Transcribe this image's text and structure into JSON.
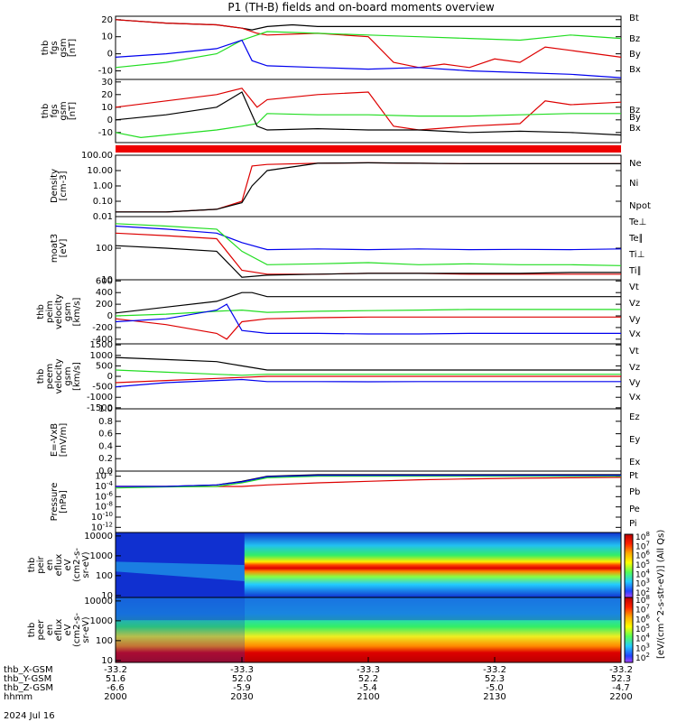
{
  "title": "P1 (TH-B) fields and on-board moments overview",
  "date_label": "2024 Jul 16",
  "colors": {
    "black": "#000000",
    "red": "#dd0000",
    "green": "#22dd22",
    "blue": "#0000ee"
  },
  "colorbar_label": "[eV/(cm^2-s-str-eV)] (All Qs)",
  "colorbar_ticks": [
    "10^8",
    "10^7",
    "10^6",
    "10^5",
    "10^4",
    "10^3",
    "10^2"
  ],
  "chart_data": [
    {
      "type": "line",
      "ylabel": [
        "thb",
        "fgs",
        "gsm",
        "[nT]"
      ],
      "ylim": [
        -15,
        22
      ],
      "yticks": [
        "20",
        "10",
        "0",
        "-10"
      ],
      "ytick_values": [
        20,
        10,
        0,
        -10
      ],
      "legend": [
        "Bt",
        "Bz",
        "By",
        "Bx"
      ],
      "series": [
        {
          "name": "Bt",
          "color": "black",
          "x": [
            0,
            0.1,
            0.2,
            0.25,
            0.27,
            0.3,
            0.35,
            0.4,
            0.5,
            0.6,
            0.7,
            0.8,
            0.9,
            1.0
          ],
          "values": [
            20,
            18,
            17,
            15,
            14,
            16,
            17,
            16,
            16,
            16,
            16,
            16,
            16,
            16
          ]
        },
        {
          "name": "Bz",
          "color": "red",
          "x": [
            0,
            0.1,
            0.2,
            0.25,
            0.28,
            0.3,
            0.4,
            0.5,
            0.55,
            0.6,
            0.65,
            0.7,
            0.75,
            0.8,
            0.85,
            0.9,
            1.0
          ],
          "values": [
            20,
            18,
            17,
            15,
            12,
            11,
            12,
            10,
            -5,
            -8,
            -6,
            -8,
            -3,
            -5,
            4,
            2,
            -2
          ]
        },
        {
          "name": "By",
          "color": "green",
          "x": [
            0,
            0.1,
            0.2,
            0.25,
            0.27,
            0.3,
            0.4,
            0.5,
            0.6,
            0.7,
            0.8,
            0.9,
            1.0
          ],
          "values": [
            -8,
            -5,
            0,
            8,
            10,
            13,
            12,
            11,
            10,
            9,
            8,
            11,
            9
          ]
        },
        {
          "name": "Bx",
          "color": "blue",
          "x": [
            0,
            0.1,
            0.2,
            0.25,
            0.27,
            0.3,
            0.4,
            0.5,
            0.6,
            0.7,
            0.8,
            0.9,
            1.0
          ],
          "values": [
            -2,
            0,
            3,
            8,
            -4,
            -7,
            -8,
            -9,
            -8,
            -10,
            -11,
            -12,
            -14
          ]
        }
      ]
    },
    {
      "type": "line",
      "ylabel": [
        "thb",
        "fgs",
        "gsm",
        "[nT]"
      ],
      "ylim": [
        -18,
        32
      ],
      "yticks": [
        "30",
        "20",
        "10",
        "0",
        "-10"
      ],
      "ytick_values": [
        30,
        20,
        10,
        0,
        -10
      ],
      "legend": [
        "Bz",
        "By",
        "Bx"
      ],
      "series": [
        {
          "name": "Bz",
          "color": "red",
          "x": [
            0,
            0.1,
            0.2,
            0.25,
            0.28,
            0.3,
            0.4,
            0.5,
            0.55,
            0.6,
            0.7,
            0.8,
            0.85,
            0.9,
            1.0
          ],
          "values": [
            10,
            15,
            20,
            25,
            10,
            16,
            20,
            22,
            -5,
            -8,
            -5,
            -3,
            15,
            12,
            14
          ]
        },
        {
          "name": "By",
          "color": "green",
          "x": [
            0,
            0.05,
            0.1,
            0.2,
            0.25,
            0.28,
            0.3,
            0.4,
            0.5,
            0.6,
            0.7,
            0.8,
            0.9,
            1.0
          ],
          "values": [
            -10,
            -14,
            -12,
            -8,
            -5,
            -3,
            5,
            4,
            4,
            3,
            3,
            4,
            5,
            5
          ]
        },
        {
          "name": "Bx",
          "color": "black",
          "x": [
            0,
            0.1,
            0.2,
            0.25,
            0.28,
            0.3,
            0.4,
            0.5,
            0.6,
            0.7,
            0.8,
            0.9,
            1.0
          ],
          "values": [
            0,
            4,
            10,
            22,
            -5,
            -8,
            -7,
            -8,
            -8,
            -10,
            -9,
            -10,
            -12
          ]
        }
      ]
    },
    {
      "type": "line",
      "ylabel": [
        "Density",
        "[cm-3]"
      ],
      "ylim": [
        0.01,
        100
      ],
      "log": true,
      "yticks": [
        "100.00",
        "10.00",
        "1.00",
        "0.10",
        "0.01"
      ],
      "ytick_values": [
        100,
        10,
        1,
        0.1,
        0.01
      ],
      "legend": [
        "Ne",
        "Ni",
        "Npot"
      ],
      "series": [
        {
          "name": "Ne",
          "color": "red",
          "x": [
            0,
            0.1,
            0.2,
            0.25,
            0.27,
            0.3,
            0.4,
            0.5,
            0.6,
            0.7,
            0.8,
            0.9,
            1.0
          ],
          "values": [
            0.02,
            0.02,
            0.03,
            0.1,
            20,
            25,
            30,
            32,
            30,
            28,
            28,
            28,
            28
          ]
        },
        {
          "name": "Ni",
          "color": "black",
          "x": [
            0,
            0.1,
            0.2,
            0.25,
            0.27,
            0.3,
            0.4,
            0.5,
            0.6,
            0.7,
            0.8,
            0.9,
            1.0
          ],
          "values": [
            0.02,
            0.02,
            0.03,
            0.08,
            1,
            10,
            30,
            32,
            30,
            28,
            28,
            28,
            28
          ]
        }
      ]
    },
    {
      "type": "line",
      "ylabel": [
        "moat3",
        "[eV]"
      ],
      "ylim": [
        10,
        1000
      ],
      "log": true,
      "yticks": [
        "100",
        "10"
      ],
      "ytick_values": [
        100,
        10
      ],
      "legend": [
        "Te⊥",
        "Te∥",
        "Ti⊥",
        "Ti∥"
      ],
      "series": [
        {
          "name": "Te⊥",
          "color": "red",
          "x": [
            0,
            0.1,
            0.2,
            0.25,
            0.3,
            0.4,
            0.5,
            0.6,
            0.7,
            0.8,
            0.9,
            1.0
          ],
          "values": [
            300,
            250,
            200,
            20,
            15,
            15,
            16,
            16,
            15,
            15,
            15,
            15
          ]
        },
        {
          "name": "Te∥",
          "color": "black",
          "x": [
            0,
            0.1,
            0.2,
            0.25,
            0.3,
            0.4,
            0.5,
            0.6,
            0.7,
            0.8,
            0.9,
            1.0
          ],
          "values": [
            120,
            100,
            80,
            12,
            14,
            15,
            16,
            16,
            16,
            16,
            17,
            17
          ]
        },
        {
          "name": "Ti⊥",
          "color": "blue",
          "x": [
            0,
            0.1,
            0.2,
            0.25,
            0.3,
            0.4,
            0.5,
            0.6,
            0.7,
            0.8,
            0.9,
            1.0
          ],
          "values": [
            500,
            400,
            300,
            150,
            90,
            95,
            90,
            95,
            90,
            92,
            90,
            95
          ]
        },
        {
          "name": "Ti∥",
          "color": "green",
          "x": [
            0,
            0.1,
            0.2,
            0.25,
            0.3,
            0.4,
            0.5,
            0.6,
            0.7,
            0.8,
            0.9,
            1.0
          ],
          "values": [
            600,
            500,
            400,
            80,
            30,
            32,
            35,
            30,
            32,
            30,
            30,
            28
          ]
        }
      ]
    },
    {
      "type": "line",
      "ylabel": [
        "thb",
        "peim",
        "velocity",
        "gsm",
        "[km/s]"
      ],
      "ylim": [
        -480,
        620
      ],
      "yticks": [
        "600",
        "400",
        "200",
        "0",
        "-200",
        "-400"
      ],
      "ytick_values": [
        600,
        400,
        200,
        0,
        -200,
        -400
      ],
      "legend": [
        "Vt",
        "Vz",
        "Vy",
        "Vx"
      ],
      "series": [
        {
          "name": "Vt",
          "color": "black",
          "x": [
            0,
            0.1,
            0.2,
            0.25,
            0.27,
            0.3,
            0.4,
            0.5,
            0.6,
            0.7,
            0.8,
            0.9,
            1.0
          ],
          "values": [
            50,
            150,
            250,
            400,
            400,
            330,
            330,
            330,
            330,
            330,
            330,
            330,
            330
          ]
        },
        {
          "name": "Vz",
          "color": "red",
          "x": [
            0,
            0.1,
            0.2,
            0.22,
            0.25,
            0.3,
            0.4,
            0.5,
            0.6,
            0.7,
            0.8,
            0.9,
            1.0
          ],
          "values": [
            -50,
            -150,
            -300,
            -400,
            -100,
            -50,
            -30,
            -20,
            -20,
            -20,
            -20,
            -20,
            -20
          ]
        },
        {
          "name": "Vy",
          "color": "green",
          "x": [
            0,
            0.1,
            0.2,
            0.25,
            0.3,
            0.4,
            0.5,
            0.6,
            0.7,
            0.8,
            0.9,
            1.0
          ],
          "values": [
            0,
            30,
            80,
            100,
            60,
            80,
            90,
            100,
            110,
            110,
            110,
            110
          ]
        },
        {
          "name": "Vx",
          "color": "blue",
          "x": [
            0,
            0.1,
            0.2,
            0.22,
            0.25,
            0.3,
            0.4,
            0.5,
            0.6,
            0.7,
            0.8,
            0.9,
            1.0
          ],
          "values": [
            -100,
            -50,
            100,
            200,
            -250,
            -300,
            -300,
            -310,
            -310,
            -300,
            -300,
            -300,
            -300
          ]
        }
      ]
    },
    {
      "type": "line",
      "ylabel": [
        "thb",
        "peem",
        "velocity",
        "gsm",
        "[km/s]"
      ],
      "ylim": [
        -1550,
        1550
      ],
      "yticks": [
        "1500",
        "1000",
        "500",
        "0",
        "-500",
        "-1000",
        "-1500"
      ],
      "ytick_values": [
        1500,
        1000,
        500,
        0,
        -500,
        -1000,
        -1500
      ],
      "legend": [
        "Vt",
        "Vz",
        "Vy",
        "Vx"
      ],
      "series": [
        {
          "name": "Vt",
          "color": "black",
          "x": [
            0,
            0.1,
            0.2,
            0.25,
            0.3,
            0.4,
            0.5,
            0.6,
            0.7,
            0.8,
            0.9,
            1.0
          ],
          "values": [
            900,
            800,
            700,
            500,
            300,
            300,
            300,
            300,
            300,
            300,
            300,
            300
          ]
        },
        {
          "name": "Vz",
          "color": "red",
          "x": [
            0,
            0.1,
            0.2,
            0.25,
            0.3,
            0.4,
            0.5,
            0.6,
            0.7,
            0.8,
            0.9,
            1.0
          ],
          "values": [
            -300,
            -200,
            -100,
            -50,
            0,
            0,
            0,
            0,
            0,
            0,
            0,
            0
          ]
        },
        {
          "name": "Vy",
          "color": "green",
          "x": [
            0,
            0.1,
            0.2,
            0.25,
            0.3,
            0.4,
            0.5,
            0.6,
            0.7,
            0.8,
            0.9,
            1.0
          ],
          "values": [
            300,
            200,
            100,
            50,
            100,
            100,
            100,
            100,
            100,
            100,
            100,
            100
          ]
        },
        {
          "name": "Vx",
          "color": "blue",
          "x": [
            0,
            0.1,
            0.2,
            0.25,
            0.3,
            0.4,
            0.5,
            0.6,
            0.7,
            0.8,
            0.9,
            1.0
          ],
          "values": [
            -500,
            -300,
            -200,
            -150,
            -250,
            -250,
            -260,
            -250,
            -250,
            -250,
            -250,
            -250
          ]
        }
      ]
    },
    {
      "type": "line",
      "ylabel": [
        "E=-VxB",
        "[mV/m]"
      ],
      "ylim": [
        0,
        1
      ],
      "yticks": [
        "1.0",
        "0.8",
        "0.6",
        "0.4",
        "0.2",
        "0.0"
      ],
      "ytick_values": [
        1,
        0.8,
        0.6,
        0.4,
        0.2,
        0
      ],
      "legend": [
        "Ez",
        "Ey",
        "Ex"
      ],
      "series": []
    },
    {
      "type": "line",
      "ylabel": [
        "Pressure",
        "[nPa]"
      ],
      "ylim": [
        1e-13,
        0.1
      ],
      "log": true,
      "yticks": [
        "10^-2",
        "10^-4",
        "10^-6",
        "10^-8",
        "10^-10",
        "10^-12"
      ],
      "ytick_values": [
        0.01,
        0.0001,
        1e-06,
        1e-08,
        1e-10,
        1e-12
      ],
      "legend": [
        "Pt",
        "Pb",
        "Pe",
        "Pi"
      ],
      "series": [
        {
          "name": "Pt",
          "color": "black",
          "x": [
            0,
            0.1,
            0.2,
            0.25,
            0.3,
            0.4,
            0.5,
            0.6,
            0.7,
            0.8,
            0.9,
            1.0
          ],
          "values": [
            0.0001,
            0.0001,
            0.0002,
            0.001,
            0.01,
            0.02,
            0.02,
            0.02,
            0.02,
            0.02,
            0.02,
            0.02
          ]
        },
        {
          "name": "Pb",
          "color": "red",
          "x": [
            0,
            0.1,
            0.2,
            0.25,
            0.3,
            0.4,
            0.5,
            0.6,
            0.7,
            0.8,
            0.9,
            1.0
          ],
          "values": [
            0.0001,
            0.0001,
            0.0001,
            0.0001,
            0.0002,
            0.0005,
            0.001,
            0.002,
            0.003,
            0.004,
            0.005,
            0.006
          ]
        },
        {
          "name": "Pe",
          "color": "green",
          "x": [
            0,
            0.1,
            0.2,
            0.25,
            0.3,
            0.4,
            0.5,
            0.6,
            0.7,
            0.8,
            0.9,
            1.0
          ],
          "values": [
            5e-05,
            8e-05,
            0.0001,
            0.0005,
            0.005,
            0.01,
            0.01,
            0.01,
            0.01,
            0.01,
            0.01,
            0.01
          ]
        },
        {
          "name": "Pi",
          "color": "blue",
          "x": [
            0,
            0.1,
            0.2,
            0.25,
            0.3,
            0.4,
            0.5,
            0.6,
            0.7,
            0.8,
            0.9,
            1.0
          ],
          "values": [
            0.0001,
            0.0001,
            0.0002,
            0.0008,
            0.008,
            0.015,
            0.015,
            0.015,
            0.015,
            0.015,
            0.015,
            0.015
          ]
        }
      ]
    },
    {
      "type": "heatmap",
      "ylabel": [
        "thb",
        "peir",
        "en",
        "eflux",
        "eV",
        "(cm2-s-",
        "sr-eV)"
      ],
      "yticks": [
        "10000",
        "1000",
        "100",
        "10"
      ],
      "ytick_values": [
        10000,
        1000,
        100,
        10
      ],
      "log": true
    },
    {
      "type": "heatmap",
      "ylabel": [
        "thb",
        "peer",
        "en",
        "eflux",
        "eV",
        "(cm2-s-",
        "sr-eV)"
      ],
      "yticks": [
        "10000",
        "1000",
        "100",
        "10"
      ],
      "ytick_values": [
        10000,
        1000,
        100,
        10
      ],
      "log": true
    }
  ],
  "xaxis": {
    "rows": [
      {
        "label": "thb_X-GSM",
        "values": [
          "-33.2",
          "-33.3",
          "-33.3",
          "-33.2",
          "-33.2"
        ]
      },
      {
        "label": "thb_Y-GSM",
        "values": [
          "51.6",
          "52.0",
          "52.2",
          "52.3",
          "52.3"
        ]
      },
      {
        "label": "thb_Z-GSM",
        "values": [
          "-6.6",
          "-5.9",
          "-5.4",
          "-5.0",
          "-4.7"
        ]
      },
      {
        "label": "hhmm",
        "values": [
          "2000",
          "2030",
          "2100",
          "2130",
          "2200"
        ]
      }
    ],
    "ticks_frac": [
      0,
      0.25,
      0.5,
      0.75,
      1.0
    ]
  }
}
